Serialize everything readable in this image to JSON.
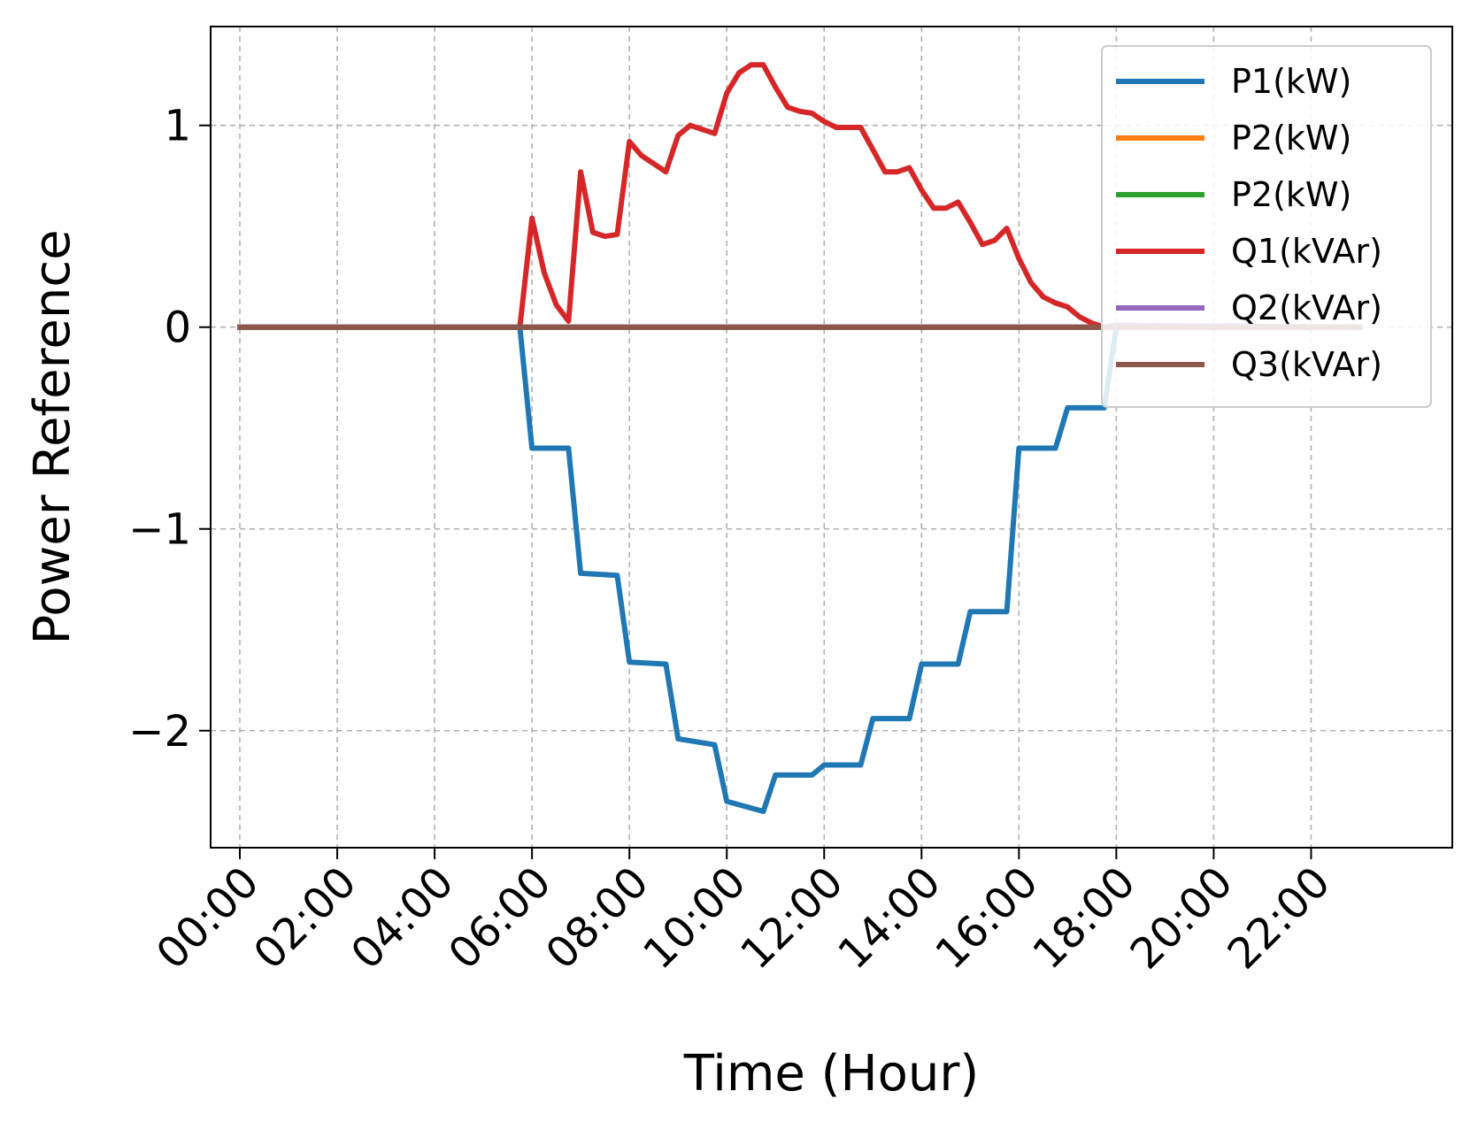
{
  "chart_data": {
    "type": "line",
    "title": "",
    "xlabel": "Time (Hour)",
    "ylabel": "Power Reference",
    "xlim": [
      "23:00 (prev)",
      "24:58"
    ],
    "xlim_hours": [
      -0.6,
      24.9
    ],
    "ylim": [
      -2.58,
      1.49
    ],
    "x_ticks": [
      "00:00",
      "02:00",
      "04:00",
      "06:00",
      "08:00",
      "10:00",
      "12:00",
      "14:00",
      "16:00",
      "18:00",
      "20:00",
      "22:00"
    ],
    "y_ticks": [
      1,
      0,
      -1,
      -2
    ],
    "y_tick_labels": [
      "1",
      "0",
      "−1",
      "−2"
    ],
    "grid": true,
    "legend_position": "top-right",
    "series": [
      {
        "name": "P1(kW)",
        "color": "#1f77b4",
        "x": [
          0,
          5.75,
          6,
          6.75,
          7,
          7.75,
          8,
          8.75,
          9,
          9.75,
          10,
          10.75,
          11,
          11.75,
          12,
          12.75,
          13,
          13.75,
          14,
          14.75,
          15,
          15.75,
          16,
          16.75,
          17,
          17.75,
          18,
          23
        ],
        "y": [
          0,
          0,
          -0.6,
          -0.6,
          -1.22,
          -1.23,
          -1.66,
          -1.67,
          -2.04,
          -2.07,
          -2.35,
          -2.4,
          -2.22,
          -2.22,
          -2.17,
          -2.17,
          -1.94,
          -1.94,
          -1.67,
          -1.67,
          -1.41,
          -1.41,
          -0.6,
          -0.6,
          -0.4,
          -0.4,
          0,
          0
        ]
      },
      {
        "name": "P2(kW)",
        "color": "#ff7f0e",
        "x": [
          0,
          23
        ],
        "y": [
          0,
          0
        ]
      },
      {
        "name": "P2(kW)",
        "color": "#2ca02c",
        "x": [
          0,
          23
        ],
        "y": [
          0,
          0
        ]
      },
      {
        "name": "Q1(kVAr)",
        "color": "#d62728",
        "x": [
          0,
          5.75,
          6,
          6.25,
          6.5,
          6.75,
          7,
          7.25,
          7.5,
          7.75,
          8,
          8.25,
          8.5,
          8.75,
          9,
          9.25,
          9.5,
          9.75,
          10,
          10.25,
          10.5,
          10.75,
          11,
          11.25,
          11.5,
          11.75,
          12,
          12.25,
          12.5,
          12.75,
          13,
          13.25,
          13.5,
          13.75,
          14,
          14.25,
          14.5,
          14.75,
          15,
          15.25,
          15.5,
          15.75,
          16,
          16.25,
          16.5,
          16.75,
          17,
          17.25,
          17.5,
          17.75,
          18,
          23
        ],
        "y": [
          0,
          0,
          0.54,
          0.27,
          0.11,
          0.03,
          0.77,
          0.47,
          0.45,
          0.46,
          0.92,
          0.85,
          0.81,
          0.77,
          0.95,
          1.0,
          0.98,
          0.96,
          1.16,
          1.26,
          1.3,
          1.3,
          1.19,
          1.09,
          1.07,
          1.06,
          1.02,
          0.99,
          0.99,
          0.99,
          0.88,
          0.77,
          0.77,
          0.79,
          0.68,
          0.59,
          0.59,
          0.62,
          0.52,
          0.41,
          0.43,
          0.49,
          0.34,
          0.22,
          0.15,
          0.12,
          0.1,
          0.05,
          0.02,
          0.0,
          0.0,
          0.0
        ]
      },
      {
        "name": "Q2(kVAr)",
        "color": "#9467bd",
        "x": [
          0,
          17.75,
          18,
          23
        ],
        "y": [
          0,
          0,
          0.01,
          0
        ]
      },
      {
        "name": "Q3(kVAr)",
        "color": "#8c564b",
        "x": [
          0,
          23
        ],
        "y": [
          0,
          0
        ]
      }
    ]
  }
}
